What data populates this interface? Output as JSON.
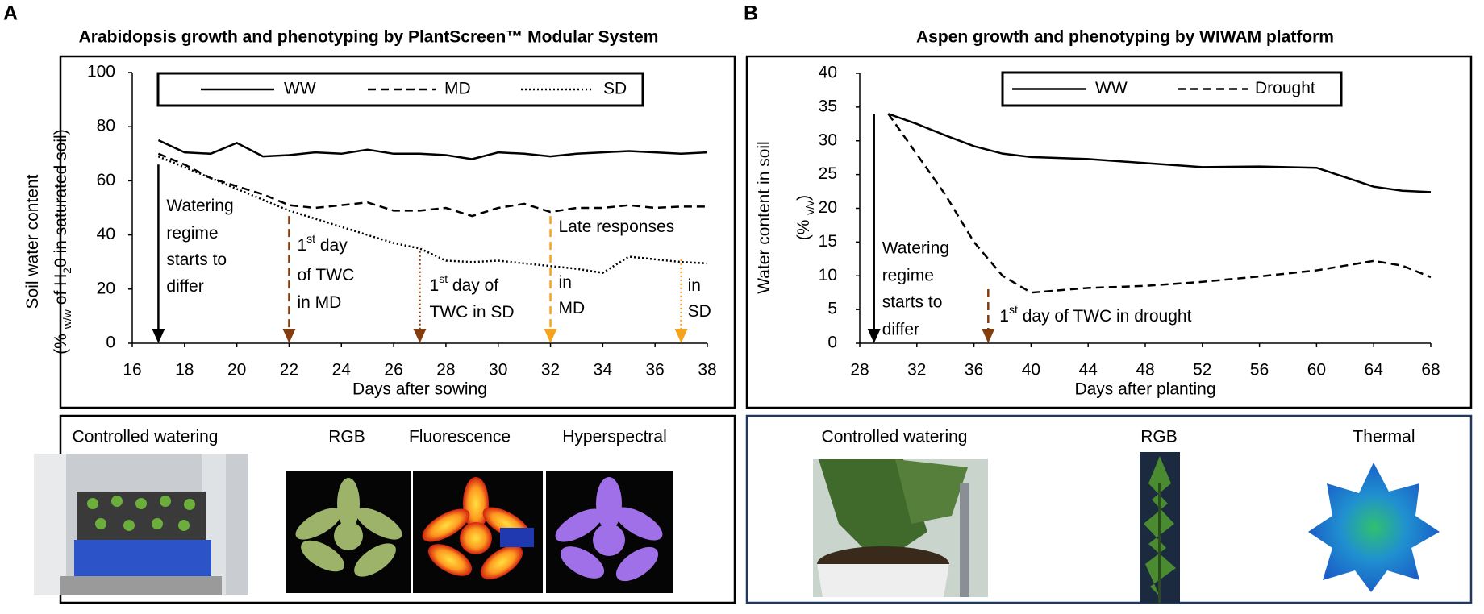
{
  "chart_data": [
    {
      "panel_label": "A",
      "type": "line",
      "title": "Arabidopsis growth and phenotyping by PlantScreen™ Modular System",
      "x": [
        17,
        18,
        19,
        20,
        21,
        22,
        23,
        24,
        25,
        26,
        27,
        28,
        29,
        30,
        31,
        32,
        33,
        34,
        35,
        36,
        37,
        38
      ],
      "series": [
        {
          "name": "WW",
          "color": "#000000",
          "dash": "solid",
          "values": [
            75,
            70.5,
            70,
            74,
            69,
            69.5,
            70.5,
            70,
            71.5,
            70,
            70,
            69.5,
            68,
            70.5,
            70,
            69,
            70,
            70.5,
            71,
            70.5,
            70,
            70.5
          ]
        },
        {
          "name": "MD",
          "color": "#000000",
          "dash": "dashed",
          "values": [
            70,
            66,
            61,
            58,
            55,
            51,
            50,
            51,
            52,
            49,
            49,
            50,
            47,
            50,
            51.5,
            48.5,
            50,
            50,
            51,
            50,
            50.5,
            50.5
          ]
        },
        {
          "name": "SD",
          "color": "#000000",
          "dash": "dotted",
          "values": [
            69,
            65,
            61,
            57,
            53,
            49,
            46,
            43,
            40,
            37,
            35,
            30.5,
            30,
            30.5,
            29.5,
            28.5,
            27.5,
            26,
            32,
            31,
            30,
            29.5
          ]
        }
      ],
      "xlim": [
        16,
        38
      ],
      "xticks": [
        16,
        18,
        20,
        22,
        24,
        26,
        28,
        30,
        32,
        34,
        36,
        38
      ],
      "ylim": [
        0,
        100
      ],
      "yticks": [
        0,
        20,
        40,
        60,
        80,
        100
      ],
      "xlabel": "Days after sowing",
      "ylabel": [
        [
          {
            "text": "Soil water content"
          }
        ],
        [
          {
            "text": "(% "
          },
          {
            "text": "w/w",
            "sub": true
          },
          {
            "text": " of H"
          },
          {
            "text": "2",
            "sub": true
          },
          {
            "text": "0 in  saturated soil)"
          }
        ]
      ],
      "legend": "top",
      "annotations": [
        {
          "x": 17,
          "y_top": 66,
          "color": "#000000",
          "dash": "solid",
          "lines": [
            [
              {
                "text": "Watering"
              }
            ],
            [
              {
                "text": "regime"
              }
            ],
            [
              {
                "text": "starts to"
              }
            ],
            [
              {
                "text": "differ"
              }
            ]
          ]
        },
        {
          "x": 22,
          "y_top": 47,
          "color": "#843c0c",
          "dash": "dashed",
          "lines": [
            [
              {
                "text": "1"
              },
              {
                "text": "st",
                "sup": true
              },
              {
                "text": " day"
              }
            ],
            [
              {
                "text": "of TWC"
              }
            ],
            [
              {
                "text": "in MD"
              }
            ]
          ]
        },
        {
          "x": 27,
          "y_top": 34,
          "color": "#843c0c",
          "dash": "dotted",
          "lines": [
            [
              {
                "text": "1"
              },
              {
                "text": "st",
                "sup": true
              },
              {
                "text": " day of"
              }
            ],
            [
              {
                "text": "TWC in SD"
              }
            ]
          ]
        },
        {
          "x": 32,
          "y_top": 47,
          "color": "#f5a31a",
          "dash": "dashed",
          "lines": [
            [
              {
                "text": "Late responses"
              }
            ],
            [
              {
                "text": "in"
              }
            ],
            [
              {
                "text": "MD"
              }
            ]
          ]
        },
        {
          "x": 37,
          "y_top": 31,
          "color": "#f5a31a",
          "dash": "dotted",
          "lines": [
            [
              {
                "text": "in"
              }
            ],
            [
              {
                "text": "SD"
              }
            ]
          ]
        }
      ],
      "image_captions": [
        "Controlled watering",
        "RGB",
        "Fluorescence",
        "Hyperspectral"
      ]
    },
    {
      "panel_label": "B",
      "type": "line",
      "title": "Aspen growth and phenotyping by WIWAM platform",
      "x": [
        30,
        32,
        34,
        36,
        38,
        40,
        44,
        48,
        52,
        56,
        60,
        62,
        64,
        66,
        68
      ],
      "series": [
        {
          "name": "WW",
          "color": "#000000",
          "dash": "solid",
          "values": [
            34,
            32.5,
            30.8,
            29.2,
            28.1,
            27.6,
            27.3,
            26.7,
            26.1,
            26.2,
            26,
            24.6,
            23.2,
            22.6,
            22.4
          ]
        },
        {
          "name": "Drought",
          "color": "#000000",
          "dash": "dashed",
          "values": [
            34,
            28,
            22,
            15,
            10,
            7.5,
            8.2,
            8.5,
            9.1,
            9.9,
            10.8,
            11.5,
            12.2,
            11.5,
            9.8
          ]
        }
      ],
      "xlim": [
        28,
        68
      ],
      "xticks": [
        28,
        32,
        36,
        40,
        44,
        48,
        52,
        56,
        60,
        64,
        68
      ],
      "ylim": [
        0,
        40
      ],
      "yticks": [
        0,
        5,
        10,
        15,
        20,
        25,
        30,
        35,
        40
      ],
      "xlabel": "Days after planting",
      "ylabel": [
        [
          {
            "text": "Water content in soil"
          }
        ],
        [
          {
            "text": "(% "
          },
          {
            "text": "v/v",
            "sub": true
          },
          {
            "text": ")"
          }
        ]
      ],
      "legend": "top",
      "annotations": [
        {
          "x": 29,
          "y_top": 34,
          "color": "#000000",
          "dash": "solid",
          "lines": [
            [
              {
                "text": "Watering"
              }
            ],
            [
              {
                "text": "regime"
              }
            ],
            [
              {
                "text": "starts to"
              }
            ],
            [
              {
                "text": "differ"
              }
            ]
          ]
        },
        {
          "x": 37,
          "y_top": 8,
          "color": "#843c0c",
          "dash": "dashed",
          "lines": [
            [
              {
                "text": "1"
              },
              {
                "text": "st",
                "sup": true
              },
              {
                "text": " day of TWC in drought"
              }
            ]
          ]
        }
      ],
      "image_captions": [
        "Controlled watering",
        "RGB",
        "Thermal"
      ]
    }
  ]
}
